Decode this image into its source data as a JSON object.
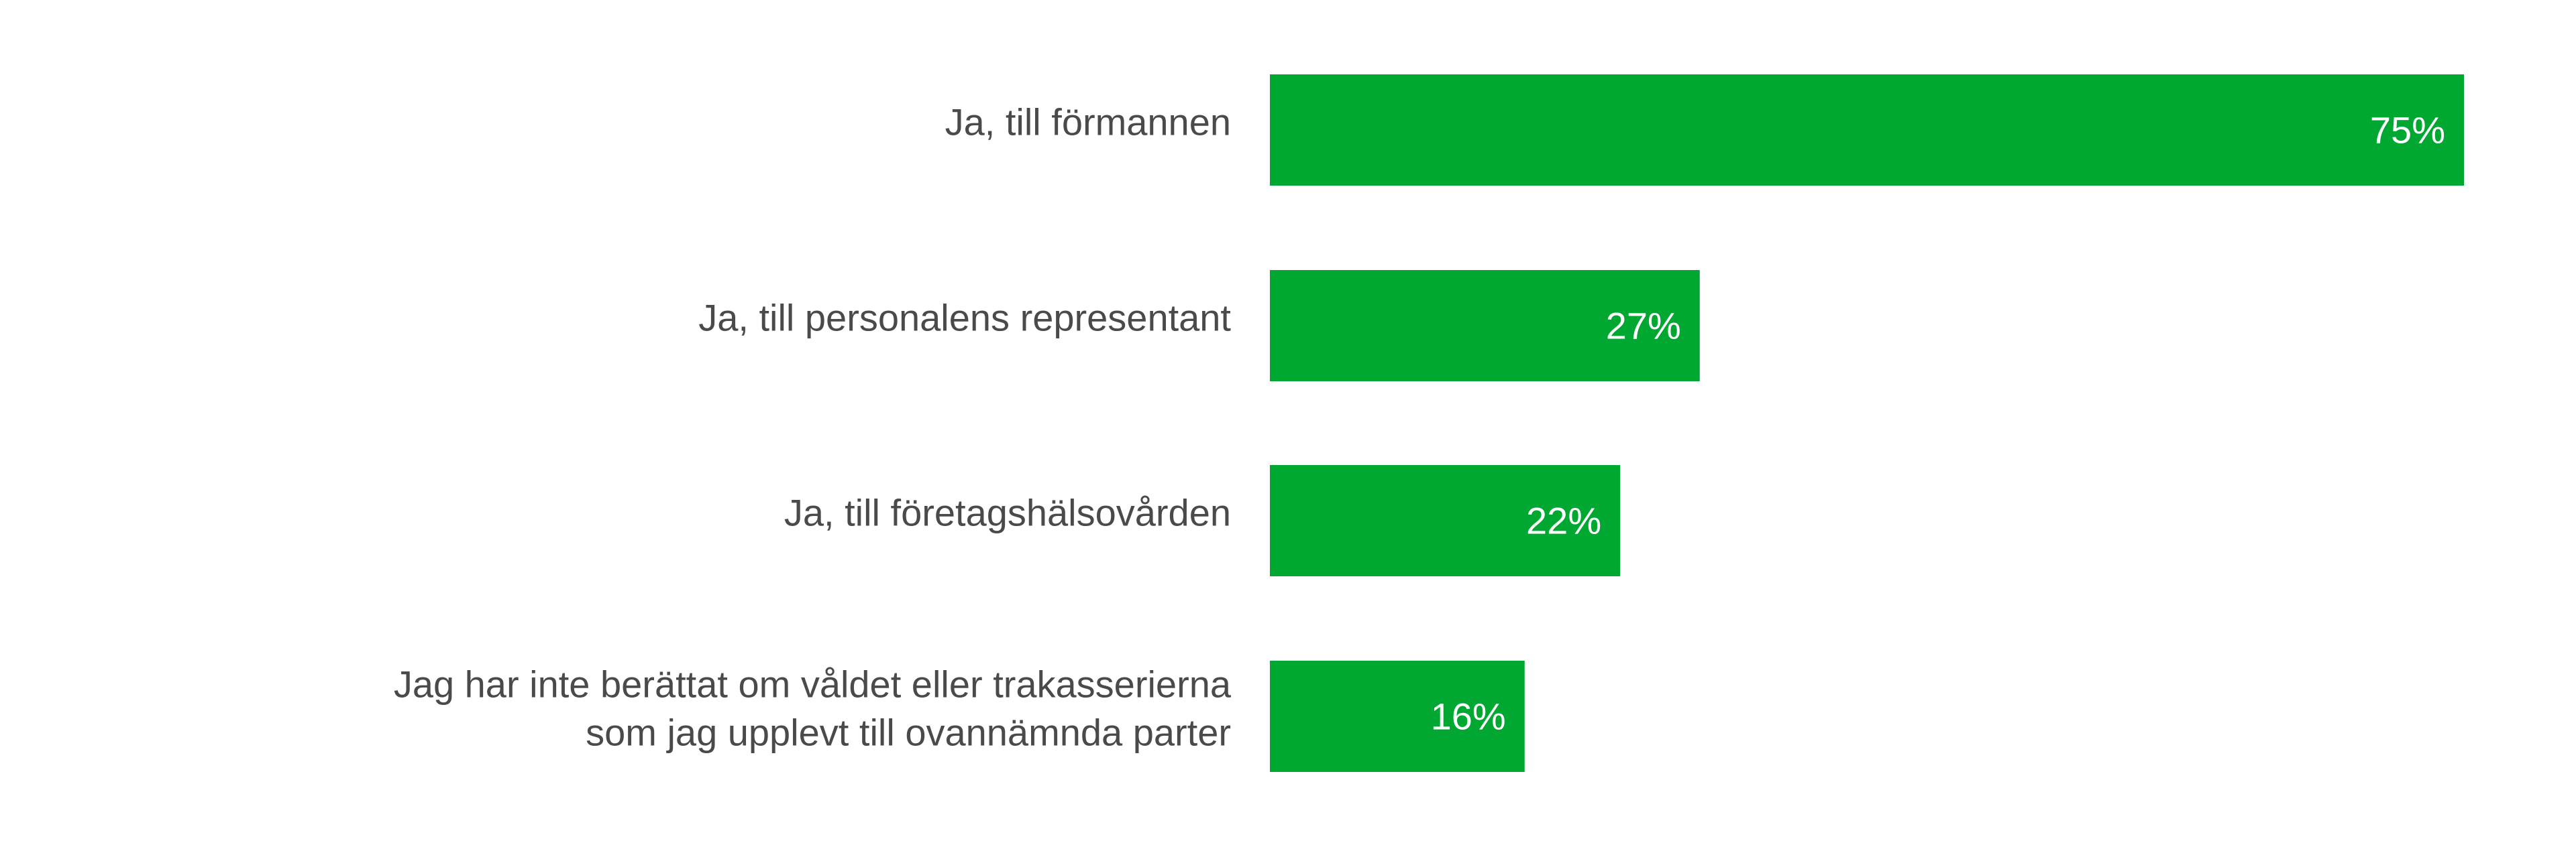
{
  "chart_data": {
    "type": "bar",
    "orientation": "horizontal",
    "categories": [
      [
        "Ja, till förmannen"
      ],
      [
        "Ja, till personalens representant"
      ],
      [
        "Ja, till företagshälsovården"
      ],
      [
        "Jag har inte berättat om våldet eller trakasserierna",
        "som jag upplevt till ovannämnda parter"
      ]
    ],
    "values": [
      75,
      27,
      22,
      16
    ],
    "value_labels": [
      "75%",
      "27%",
      "22%",
      "16%"
    ],
    "unit": "%",
    "xlim": [
      0,
      75
    ],
    "grid": false,
    "legend": "none",
    "colors": {
      "bar": "#00a832",
      "label_text": "#4a4a4a",
      "value_text": "#ffffff"
    }
  }
}
